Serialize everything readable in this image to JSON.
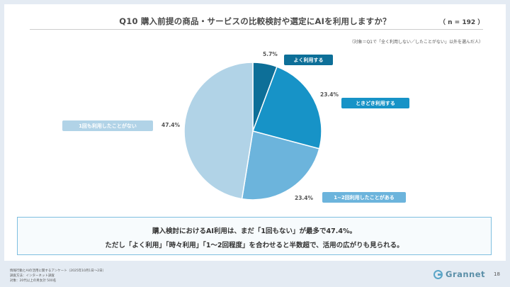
{
  "title": "Q10 購入前提の商品・サービスの比較検討や選定にAIを利用しますか？",
  "sample": "（ n = 192 ）",
  "note": "（対象＝Q1で「全く利用しない／したことがない」以外を選んだ人）",
  "chart_data": {
    "type": "pie",
    "slices": [
      {
        "name": "よく利用する",
        "value": 5.7,
        "label": "5.7%",
        "color": "#0d6f98"
      },
      {
        "name": "ときどき利用する",
        "value": 23.4,
        "label": "23.4%",
        "color": "#1793c7"
      },
      {
        "name": "1~2回利用したことがある",
        "value": 23.4,
        "label": "23.4%",
        "color": "#6cb4dc"
      },
      {
        "name": "1回も利用したことがない",
        "value": 47.4,
        "label": "47.4%",
        "color": "#b1d3e7"
      }
    ]
  },
  "summary": {
    "line1": "購入検討におけるAI利用は、まだ「1回もない」が最多で47.4%。",
    "line2": "ただし「よく利用」「時々利用」「1〜2回程度」を合わせると半数超で、活用の広がりも見られる。"
  },
  "source": {
    "line1": "情報行動とAIの活用に関するアンケート（2025年10月1日〜2日）",
    "line2": "調査方法：インターネット調査",
    "line3": "対象：20代以上の男女計 500名"
  },
  "brand": "Grannet",
  "page_number": "18"
}
